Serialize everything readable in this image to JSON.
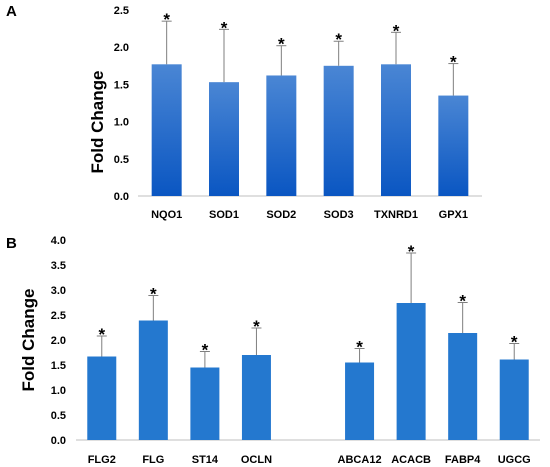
{
  "chart_data": [
    {
      "panel": "A",
      "type": "bar",
      "ylabel": "Fold Change",
      "ylim": [
        0,
        2.5
      ],
      "yticks": [
        "0.0",
        "0.5",
        "1.0",
        "1.5",
        "2.0",
        "2.5"
      ],
      "categories": [
        "NQO1",
        "SOD1",
        "SOD2",
        "SOD3",
        "TXNRD1",
        "GPX1"
      ],
      "values": [
        1.77,
        1.53,
        1.62,
        1.75,
        1.77,
        1.35
      ],
      "errors": [
        0.58,
        0.71,
        0.4,
        0.33,
        0.43,
        0.43
      ],
      "annotations": [
        "*",
        "*",
        "*",
        "*",
        "*",
        "*"
      ],
      "bar_style": "gradient",
      "colors": {
        "bar_top": "#4a86d4",
        "bar_bottom": "#0a56c2",
        "error": "#7f7f7f",
        "axis": "#bfbfbf"
      }
    },
    {
      "panel": "B",
      "type": "bar",
      "ylabel": "Fold Change",
      "ylim": [
        0,
        4.0
      ],
      "yticks": [
        "0.0",
        "0.5",
        "1.0",
        "1.5",
        "2.0",
        "2.5",
        "3.0",
        "3.5",
        "4.0"
      ],
      "categories": [
        "FLG2",
        "FLG",
        "ST14",
        "OCLN",
        "",
        "ABCA12",
        "ACACB",
        "FABP4",
        "UGCG"
      ],
      "values": [
        1.67,
        2.39,
        1.45,
        1.7,
        null,
        1.55,
        2.74,
        2.14,
        1.61
      ],
      "errors": [
        0.41,
        0.5,
        0.32,
        0.54,
        null,
        0.28,
        1.0,
        0.61,
        0.32
      ],
      "annotations": [
        "*",
        "*",
        "*",
        "*",
        "",
        "*",
        "*",
        "*",
        "*"
      ],
      "bar_style": "solid",
      "colors": {
        "bar": "#2478cf",
        "error": "#7f7f7f",
        "axis": "#bfbfbf"
      }
    }
  ]
}
